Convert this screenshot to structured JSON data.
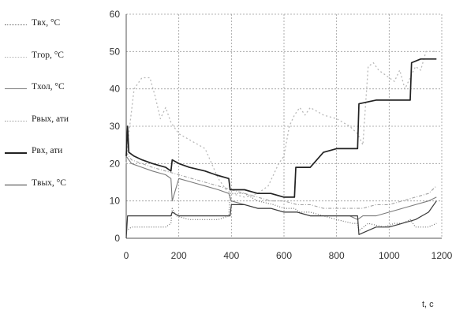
{
  "chart_data": {
    "type": "line",
    "xlabel": "t, c",
    "ylabel": "",
    "xlim": [
      0,
      1200
    ],
    "ylim": [
      0,
      60
    ],
    "xticks": [
      0,
      200,
      400,
      600,
      800,
      1000,
      1200
    ],
    "xtick_labels": [
      "0",
      "200",
      "400",
      "600",
      "800",
      "1000",
      "1200"
    ],
    "yticks": [
      0,
      10,
      20,
      30,
      40,
      50,
      60
    ],
    "ytick_labels": [
      "0",
      "10",
      "20",
      "30",
      "40",
      "50",
      "60"
    ],
    "grid": true,
    "legend_position": "left",
    "series": [
      {
        "name": "Tвх, °C",
        "color": "#6f6f6f",
        "dash": "1,2",
        "width": 1.2,
        "x": [
          0,
          20,
          60,
          100,
          150,
          170,
          175,
          190,
          240,
          300,
          350,
          390,
          395,
          450,
          500,
          560,
          600,
          640,
          660,
          700,
          750,
          800,
          860,
          880,
          885,
          920,
          980,
          1020,
          1050,
          1080,
          1100,
          1150,
          1180
        ],
        "y": [
          2,
          3,
          3,
          3,
          3,
          4,
          8,
          6,
          5,
          5,
          5,
          6,
          12,
          12,
          10,
          9,
          8,
          8,
          7,
          7,
          6,
          5,
          4,
          4,
          2,
          4,
          3,
          4,
          4,
          5,
          3,
          3,
          4
        ]
      },
      {
        "name": "Tгор, °C",
        "color": "#b8b8b8",
        "dash": "2,3",
        "width": 1.3,
        "x": [
          0,
          10,
          30,
          60,
          90,
          110,
          130,
          150,
          170,
          200,
          250,
          300,
          350,
          380,
          400,
          450,
          500,
          540,
          560,
          580,
          600,
          620,
          640,
          660,
          680,
          700,
          750,
          800,
          850,
          880,
          900,
          920,
          940,
          960,
          980,
          1000,
          1020,
          1040,
          1060,
          1080,
          1100,
          1120,
          1140,
          1160,
          1180
        ],
        "y": [
          20,
          28,
          40,
          43,
          43,
          38,
          32,
          35,
          31,
          28,
          26,
          24,
          16,
          13,
          12,
          11,
          12,
          14,
          17,
          20,
          22,
          30,
          33,
          35,
          33,
          35,
          33,
          32,
          30,
          28,
          25,
          46,
          47,
          45,
          44,
          43,
          42,
          45,
          40,
          43,
          46,
          45,
          50,
          50,
          50
        ]
      },
      {
        "name": "Tхол, °C",
        "color": "#7a7a7a",
        "dash": "",
        "width": 1.1,
        "x": [
          0,
          20,
          60,
          100,
          150,
          170,
          175,
          200,
          250,
          300,
          350,
          390,
          400,
          450,
          500,
          550,
          600,
          650,
          700,
          750,
          800,
          850,
          880,
          900,
          950,
          1000,
          1050,
          1100,
          1150,
          1180
        ],
        "y": [
          22,
          20,
          19,
          18,
          17,
          16,
          10,
          16,
          15,
          14,
          13,
          12,
          10,
          9,
          8,
          8,
          7,
          7,
          6,
          6,
          6,
          6,
          5,
          6,
          6,
          7,
          8,
          9,
          10,
          11
        ]
      },
      {
        "name": "Pвых, ати",
        "color": "#a3a3a3",
        "dash": "4,2,1,2",
        "width": 1.1,
        "x": [
          0,
          20,
          60,
          100,
          150,
          200,
          250,
          300,
          350,
          400,
          450,
          500,
          550,
          600,
          650,
          700,
          750,
          800,
          850,
          900,
          950,
          1000,
          1050,
          1100,
          1150,
          1180
        ],
        "y": [
          23,
          21,
          20,
          19,
          18,
          17,
          16,
          15,
          14,
          13,
          12,
          11,
          10,
          10,
          9,
          9,
          8,
          8,
          8,
          8,
          9,
          9,
          10,
          11,
          12,
          14
        ]
      },
      {
        "name": "Pвх, ати",
        "color": "#222222",
        "dash": "",
        "width": 1.7,
        "x": [
          0,
          5,
          10,
          30,
          60,
          100,
          150,
          170,
          175,
          200,
          240,
          300,
          340,
          390,
          395,
          450,
          500,
          550,
          600,
          640,
          645,
          700,
          750,
          800,
          860,
          880,
          885,
          950,
          1000,
          1050,
          1080,
          1085,
          1120,
          1150,
          1180
        ],
        "y": [
          22,
          30,
          23,
          22,
          21,
          20,
          19,
          18,
          21,
          20,
          19,
          18,
          17,
          16,
          13,
          13,
          12,
          12,
          11,
          11,
          19,
          19,
          23,
          24,
          24,
          24,
          36,
          37,
          37,
          37,
          37,
          47,
          48,
          48,
          48
        ]
      },
      {
        "name": "Tвых, °C",
        "color": "#3a3a3a",
        "dash": "",
        "width": 1.2,
        "x": [
          0,
          5,
          60,
          110,
          160,
          170,
          175,
          200,
          250,
          300,
          350,
          395,
          400,
          450,
          500,
          550,
          600,
          650,
          700,
          750,
          800,
          850,
          880,
          885,
          950,
          1000,
          1050,
          1100,
          1150,
          1180
        ],
        "y": [
          0,
          6,
          6,
          6,
          6,
          6,
          7,
          6,
          6,
          6,
          6,
          6,
          9,
          9,
          8,
          8,
          7,
          7,
          6,
          6,
          6,
          6,
          6,
          1,
          3,
          3,
          4,
          5,
          7,
          10
        ]
      }
    ]
  }
}
